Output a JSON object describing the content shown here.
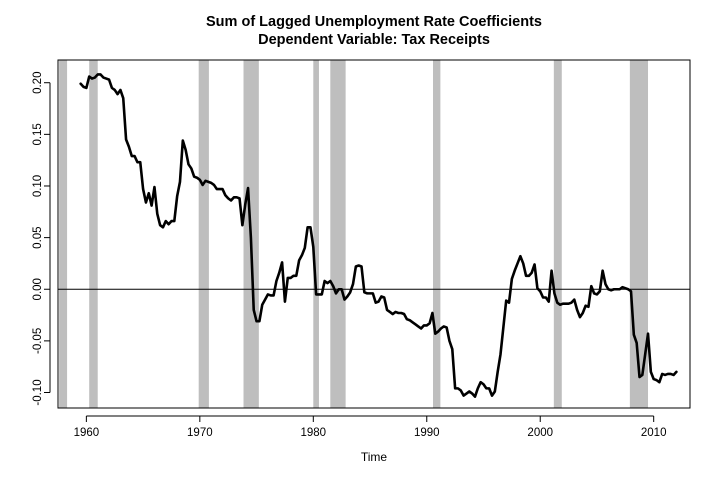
{
  "chart_data": {
    "type": "line",
    "title": "Sum of Lagged Unemployment Rate Coefficients",
    "subtitle": "Dependent Variable: Tax Receipts",
    "xlabel": "Time",
    "ylabel": "",
    "xlim": [
      1957.5,
      2013.2
    ],
    "ylim": [
      -0.115,
      0.222
    ],
    "x_ticks": [
      1960,
      1970,
      1980,
      1990,
      2000,
      2010
    ],
    "x_tick_labels": [
      "1960",
      "1970",
      "1980",
      "1990",
      "2000",
      "2010"
    ],
    "y_ticks": [
      -0.1,
      -0.05,
      0.0,
      0.05,
      0.1,
      0.15,
      0.2
    ],
    "y_tick_labels": [
      "-0.10",
      "-0.05",
      "0.00",
      "0.05",
      "0.10",
      "0.15",
      "0.20"
    ],
    "reference_line_y": 0,
    "grid": false,
    "colors": {
      "line": "#000000",
      "recession": "#bebebe",
      "zero_line": "#000000"
    },
    "recession_shading": [
      [
        1957.6,
        1958.3
      ],
      [
        1960.25,
        1961.0
      ],
      [
        1969.9,
        1970.8
      ],
      [
        1973.85,
        1975.2
      ],
      [
        1980.0,
        1980.5
      ],
      [
        1981.5,
        1982.85
      ],
      [
        1990.55,
        1991.2
      ],
      [
        2001.2,
        2001.9
      ],
      [
        2007.9,
        2009.5
      ]
    ],
    "series": [
      {
        "values": [
          [
            1959.5,
            0.199
          ],
          [
            1959.75,
            0.196
          ],
          [
            1960.0,
            0.195
          ],
          [
            1960.25,
            0.206
          ],
          [
            1960.5,
            0.204
          ],
          [
            1960.75,
            0.205
          ],
          [
            1961.0,
            0.208
          ],
          [
            1961.25,
            0.208
          ],
          [
            1961.5,
            0.205
          ],
          [
            1961.75,
            0.204
          ],
          [
            1962.0,
            0.203
          ],
          [
            1962.25,
            0.195
          ],
          [
            1962.5,
            0.193
          ],
          [
            1962.75,
            0.189
          ],
          [
            1963.0,
            0.193
          ],
          [
            1963.25,
            0.185
          ],
          [
            1963.5,
            0.145
          ],
          [
            1963.75,
            0.138
          ],
          [
            1964.0,
            0.129
          ],
          [
            1964.25,
            0.129
          ],
          [
            1964.5,
            0.123
          ],
          [
            1964.75,
            0.123
          ],
          [
            1965.0,
            0.097
          ],
          [
            1965.25,
            0.084
          ],
          [
            1965.5,
            0.093
          ],
          [
            1965.75,
            0.081
          ],
          [
            1966.0,
            0.099
          ],
          [
            1966.25,
            0.073
          ],
          [
            1966.5,
            0.062
          ],
          [
            1966.75,
            0.06
          ],
          [
            1967.0,
            0.066
          ],
          [
            1967.25,
            0.063
          ],
          [
            1967.5,
            0.066
          ],
          [
            1967.75,
            0.066
          ],
          [
            1968.0,
            0.09
          ],
          [
            1968.25,
            0.104
          ],
          [
            1968.5,
            0.144
          ],
          [
            1968.75,
            0.135
          ],
          [
            1969.0,
            0.121
          ],
          [
            1969.25,
            0.117
          ],
          [
            1969.5,
            0.109
          ],
          [
            1969.75,
            0.108
          ],
          [
            1970.0,
            0.106
          ],
          [
            1970.25,
            0.101
          ],
          [
            1970.5,
            0.105
          ],
          [
            1970.75,
            0.104
          ],
          [
            1971.0,
            0.103
          ],
          [
            1971.25,
            0.101
          ],
          [
            1971.5,
            0.097
          ],
          [
            1971.75,
            0.097
          ],
          [
            1972.0,
            0.097
          ],
          [
            1972.25,
            0.091
          ],
          [
            1972.5,
            0.088
          ],
          [
            1972.75,
            0.086
          ],
          [
            1973.0,
            0.089
          ],
          [
            1973.25,
            0.089
          ],
          [
            1973.5,
            0.088
          ],
          [
            1973.75,
            0.062
          ],
          [
            1974.0,
            0.082
          ],
          [
            1974.25,
            0.098
          ],
          [
            1974.5,
            0.05
          ],
          [
            1974.75,
            -0.02
          ],
          [
            1975.0,
            -0.031
          ],
          [
            1975.25,
            -0.031
          ],
          [
            1975.5,
            -0.015
          ],
          [
            1975.75,
            -0.01
          ],
          [
            1976.0,
            -0.005
          ],
          [
            1976.25,
            -0.006
          ],
          [
            1976.5,
            -0.006
          ],
          [
            1976.75,
            0.008
          ],
          [
            1977.0,
            0.016
          ],
          [
            1977.25,
            0.026
          ],
          [
            1977.5,
            -0.012
          ],
          [
            1977.75,
            0.011
          ],
          [
            1978.0,
            0.011
          ],
          [
            1978.25,
            0.013
          ],
          [
            1978.5,
            0.013
          ],
          [
            1978.75,
            0.028
          ],
          [
            1979.0,
            0.033
          ],
          [
            1979.25,
            0.04
          ],
          [
            1979.5,
            0.06
          ],
          [
            1979.75,
            0.06
          ],
          [
            1980.0,
            0.041
          ],
          [
            1980.25,
            -0.005
          ],
          [
            1980.5,
            -0.005
          ],
          [
            1980.75,
            -0.005
          ],
          [
            1981.0,
            0.008
          ],
          [
            1981.25,
            0.006
          ],
          [
            1981.5,
            0.008
          ],
          [
            1981.75,
            0.003
          ],
          [
            1982.0,
            -0.004
          ],
          [
            1982.25,
            0.0
          ],
          [
            1982.5,
            0.0
          ],
          [
            1982.75,
            -0.01
          ],
          [
            1983.0,
            -0.007
          ],
          [
            1983.25,
            -0.003
          ],
          [
            1983.5,
            0.005
          ],
          [
            1983.75,
            0.022
          ],
          [
            1984.0,
            0.023
          ],
          [
            1984.25,
            0.022
          ],
          [
            1984.5,
            -0.003
          ],
          [
            1984.75,
            -0.004
          ],
          [
            1985.0,
            -0.004
          ],
          [
            1985.25,
            -0.004
          ],
          [
            1985.5,
            -0.013
          ],
          [
            1985.75,
            -0.012
          ],
          [
            1986.0,
            -0.007
          ],
          [
            1986.25,
            -0.008
          ],
          [
            1986.5,
            -0.02
          ],
          [
            1986.75,
            -0.022
          ],
          [
            1987.0,
            -0.024
          ],
          [
            1987.25,
            -0.022
          ],
          [
            1987.5,
            -0.023
          ],
          [
            1987.75,
            -0.023
          ],
          [
            1988.0,
            -0.024
          ],
          [
            1988.25,
            -0.029
          ],
          [
            1988.5,
            -0.03
          ],
          [
            1988.75,
            -0.032
          ],
          [
            1989.0,
            -0.034
          ],
          [
            1989.25,
            -0.036
          ],
          [
            1989.5,
            -0.038
          ],
          [
            1989.75,
            -0.035
          ],
          [
            1990.0,
            -0.035
          ],
          [
            1990.25,
            -0.033
          ],
          [
            1990.5,
            -0.023
          ],
          [
            1990.75,
            -0.043
          ],
          [
            1991.0,
            -0.041
          ],
          [
            1991.25,
            -0.038
          ],
          [
            1991.5,
            -0.036
          ],
          [
            1991.75,
            -0.037
          ],
          [
            1992.0,
            -0.05
          ],
          [
            1992.25,
            -0.058
          ],
          [
            1992.5,
            -0.096
          ],
          [
            1992.75,
            -0.096
          ],
          [
            1993.0,
            -0.098
          ],
          [
            1993.25,
            -0.103
          ],
          [
            1993.5,
            -0.101
          ],
          [
            1993.75,
            -0.099
          ],
          [
            1994.0,
            -0.101
          ],
          [
            1994.25,
            -0.104
          ],
          [
            1994.5,
            -0.096
          ],
          [
            1994.75,
            -0.09
          ],
          [
            1995.0,
            -0.092
          ],
          [
            1995.25,
            -0.096
          ],
          [
            1995.5,
            -0.096
          ],
          [
            1995.75,
            -0.103
          ],
          [
            1996.0,
            -0.099
          ],
          [
            1996.25,
            -0.08
          ],
          [
            1996.5,
            -0.063
          ],
          [
            1996.75,
            -0.037
          ],
          [
            1997.0,
            -0.011
          ],
          [
            1997.25,
            -0.013
          ],
          [
            1997.5,
            0.01
          ],
          [
            1997.75,
            0.018
          ],
          [
            1998.0,
            0.025
          ],
          [
            1998.25,
            0.032
          ],
          [
            1998.5,
            0.025
          ],
          [
            1998.75,
            0.013
          ],
          [
            1999.0,
            0.013
          ],
          [
            1999.25,
            0.016
          ],
          [
            1999.5,
            0.024
          ],
          [
            1999.75,
            0.001
          ],
          [
            2000.0,
            -0.002
          ],
          [
            2000.25,
            -0.008
          ],
          [
            2000.5,
            -0.008
          ],
          [
            2000.75,
            -0.012
          ],
          [
            2001.0,
            0.018
          ],
          [
            2001.25,
            -0.004
          ],
          [
            2001.5,
            -0.013
          ],
          [
            2001.75,
            -0.015
          ],
          [
            2002.0,
            -0.014
          ],
          [
            2002.25,
            -0.014
          ],
          [
            2002.5,
            -0.014
          ],
          [
            2002.75,
            -0.013
          ],
          [
            2003.0,
            -0.01
          ],
          [
            2003.25,
            -0.02
          ],
          [
            2003.5,
            -0.027
          ],
          [
            2003.75,
            -0.023
          ],
          [
            2004.0,
            -0.016
          ],
          [
            2004.25,
            -0.017
          ],
          [
            2004.5,
            0.003
          ],
          [
            2004.75,
            -0.004
          ],
          [
            2005.0,
            -0.005
          ],
          [
            2005.25,
            -0.002
          ],
          [
            2005.5,
            0.018
          ],
          [
            2005.75,
            0.005
          ],
          [
            2006.0,
            0.0
          ],
          [
            2006.25,
            -0.001
          ],
          [
            2006.5,
            0.0
          ],
          [
            2006.75,
            0.0
          ],
          [
            2007.0,
            0.0
          ],
          [
            2007.25,
            0.002
          ],
          [
            2007.5,
            0.001
          ],
          [
            2007.75,
            0.0
          ],
          [
            2008.0,
            -0.002
          ],
          [
            2008.25,
            -0.044
          ],
          [
            2008.5,
            -0.052
          ],
          [
            2008.75,
            -0.085
          ],
          [
            2009.0,
            -0.083
          ],
          [
            2009.25,
            -0.063
          ],
          [
            2009.5,
            -0.043
          ],
          [
            2009.75,
            -0.08
          ],
          [
            2010.0,
            -0.087
          ],
          [
            2010.25,
            -0.088
          ],
          [
            2010.5,
            -0.09
          ],
          [
            2010.75,
            -0.082
          ],
          [
            2011.0,
            -0.083
          ],
          [
            2011.25,
            -0.082
          ],
          [
            2011.5,
            -0.082
          ],
          [
            2011.75,
            -0.083
          ],
          [
            2012.0,
            -0.08
          ]
        ]
      }
    ]
  }
}
